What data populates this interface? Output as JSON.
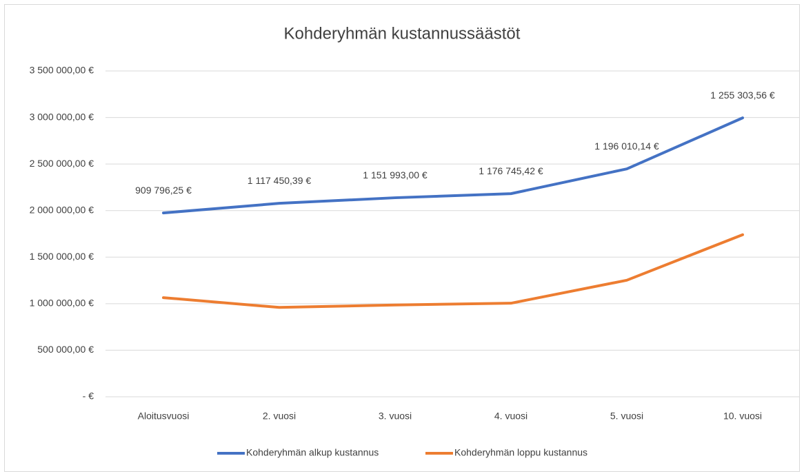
{
  "chart_data": {
    "type": "line",
    "title": "Kohderyhmän kustannussäästöt",
    "categories": [
      "Aloitusvuosi",
      "2. vuosi",
      "3. vuosi",
      "4. vuosi",
      "5. vuosi",
      "10. vuosi"
    ],
    "series": [
      {
        "name": "Kohderyhmän alkup kustannus",
        "color": "#4472c4",
        "values": [
          1975000,
          2078000,
          2138000,
          2182000,
          2448000,
          2996000
        ]
      },
      {
        "name": "Kohderyhmän loppu kustannus",
        "color": "#ed7d31",
        "values": [
          1065000,
          960000,
          986000,
          1005000,
          1252000,
          1741000
        ]
      }
    ],
    "annotations": [
      "909 796,25 €",
      "1 117 450,39 €",
      "1 151 993,00 €",
      "1 176 745,42 €",
      "1 196 010,14 €",
      "1 255 303,56 €"
    ],
    "ylim": [
      0,
      3500000
    ],
    "yticks": [
      {
        "value": 0,
        "label": "-   €"
      },
      {
        "value": 500000,
        "label": "500 000,00 €"
      },
      {
        "value": 1000000,
        "label": "1 000 000,00 €"
      },
      {
        "value": 1500000,
        "label": "1 500 000,00 €"
      },
      {
        "value": 2000000,
        "label": "2 000 000,00 €"
      },
      {
        "value": 2500000,
        "label": "2 500 000,00 €"
      },
      {
        "value": 3000000,
        "label": "3 000 000,00 €"
      },
      {
        "value": 3500000,
        "label": "3 500 000,00 €"
      }
    ],
    "grid": true,
    "legend": "bottom"
  }
}
